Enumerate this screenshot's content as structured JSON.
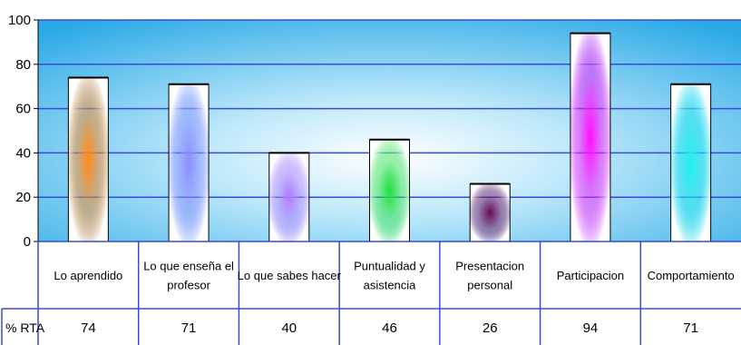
{
  "chart_data": {
    "type": "bar",
    "categories": [
      "Lo aprendido",
      "Lo que enseña el profesor",
      "Lo que sabes hacer",
      "Puntualidad y asistencia",
      "Presentacion personal",
      "Participacion",
      "Comportamiento"
    ],
    "series": [
      {
        "name": "% RTA",
        "values": [
          74,
          71,
          40,
          46,
          26,
          94,
          71
        ]
      }
    ],
    "bar_colors": [
      "#ff8a1e",
      "#8c8cff",
      "#b07cff",
      "#22e040",
      "#6a0a5a",
      "#ff10ff",
      "#22f0f0"
    ],
    "ylim": [
      0,
      100
    ],
    "yticks": [
      0,
      20,
      40,
      60,
      80,
      100
    ],
    "grid": true,
    "legend": "data-table",
    "plot_background": "#37b7ee",
    "gridline_color": "#3a4ad8"
  }
}
